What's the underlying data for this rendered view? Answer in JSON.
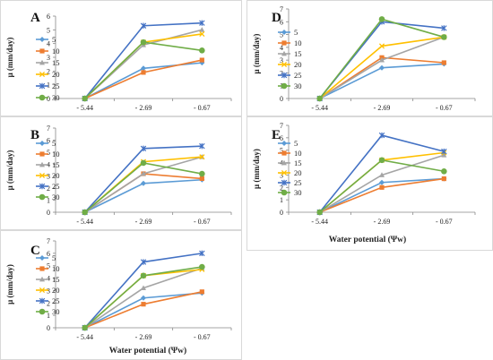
{
  "colors": {
    "s5": "#5b9bd5",
    "s10": "#ed7d31",
    "s15": "#a5a5a5",
    "s20": "#ffc000",
    "s25": "#4472c4",
    "s30": "#70ad47"
  },
  "chart_data": [
    {
      "type": "line",
      "panel_label": "A",
      "categories": [
        "- 5.44",
        "- 2.69",
        "- 0.67"
      ],
      "ylabel": "μ (mm/day)",
      "xlabel": "",
      "ylim": [
        0,
        6
      ],
      "yticks": [
        "0",
        "1",
        "2",
        "3",
        "4",
        "5",
        "6"
      ],
      "legend_position": "top-left",
      "series": [
        {
          "name": "5",
          "values": [
            0,
            2.2,
            2.6
          ]
        },
        {
          "name": "10",
          "values": [
            0,
            1.9,
            2.8
          ]
        },
        {
          "name": "15",
          "values": [
            0,
            3.9,
            5.0
          ]
        },
        {
          "name": "20",
          "values": [
            0,
            4.1,
            4.7
          ]
        },
        {
          "name": "25",
          "values": [
            0,
            5.3,
            5.5
          ]
        },
        {
          "name": "30",
          "values": [
            0,
            4.1,
            3.5
          ]
        }
      ]
    },
    {
      "type": "line",
      "panel_label": "B",
      "categories": [
        "- 5.44",
        "- 2.69",
        "- 0.67"
      ],
      "ylabel": "μ (mm/day)",
      "xlabel": "",
      "ylim": [
        0,
        7
      ],
      "yticks": [
        "0",
        "1",
        "2",
        "3",
        "4",
        "5",
        "6",
        "7"
      ],
      "legend_position": "top-left",
      "series": [
        {
          "name": "5",
          "values": [
            0,
            2.4,
            2.7
          ]
        },
        {
          "name": "10",
          "values": [
            0,
            3.2,
            2.8
          ]
        },
        {
          "name": "15",
          "values": [
            0,
            3.2,
            4.6
          ]
        },
        {
          "name": "20",
          "values": [
            0,
            4.2,
            4.6
          ]
        },
        {
          "name": "25",
          "values": [
            0,
            5.3,
            5.5
          ]
        },
        {
          "name": "30",
          "values": [
            0,
            4.1,
            3.2
          ]
        }
      ]
    },
    {
      "type": "line",
      "panel_label": "C",
      "categories": [
        "- 5.44",
        "- 2.69",
        "- 0.67"
      ],
      "ylabel": "μ (mm/day)",
      "xlabel": "Water potential (Ψw)",
      "ylim": [
        0,
        7
      ],
      "yticks": [
        "0",
        "1",
        "2",
        "3",
        "4",
        "5",
        "6",
        "7"
      ],
      "legend_position": "top-left",
      "series": [
        {
          "name": "5",
          "values": [
            0,
            2.4,
            2.8
          ]
        },
        {
          "name": "10",
          "values": [
            0,
            1.9,
            2.9
          ]
        },
        {
          "name": "15",
          "values": [
            0,
            3.2,
            4.8
          ]
        },
        {
          "name": "20",
          "values": [
            0,
            4.2,
            4.7
          ]
        },
        {
          "name": "25",
          "values": [
            0,
            5.3,
            6.0
          ]
        },
        {
          "name": "30",
          "values": [
            0,
            4.2,
            4.9
          ]
        }
      ]
    },
    {
      "type": "line",
      "panel_label": "D",
      "categories": [
        "- 5.44",
        "- 2.69",
        "- 0.67"
      ],
      "ylabel": "μ (mm/day)",
      "xlabel": "",
      "ylim": [
        0,
        7
      ],
      "yticks": [
        "0",
        "1",
        "2",
        "3",
        "4",
        "5",
        "6",
        "7"
      ],
      "legend_position": "top-left",
      "series": [
        {
          "name": "5",
          "values": [
            0,
            2.4,
            2.7
          ]
        },
        {
          "name": "10",
          "values": [
            0,
            3.2,
            2.8
          ]
        },
        {
          "name": "15",
          "values": [
            0,
            3.0,
            4.8
          ]
        },
        {
          "name": "20",
          "values": [
            0,
            4.1,
            4.8
          ]
        },
        {
          "name": "25",
          "values": [
            0,
            6.0,
            5.5
          ]
        },
        {
          "name": "30",
          "values": [
            0,
            6.2,
            4.8
          ]
        }
      ]
    },
    {
      "type": "line",
      "panel_label": "E",
      "categories": [
        "- 5.44",
        "- 2.69",
        "- 0.67"
      ],
      "ylabel": "μ (mm/day)",
      "xlabel": "Water potential (Ψw)",
      "ylim": [
        0,
        7
      ],
      "yticks": [
        "0",
        "1",
        "2",
        "3",
        "4",
        "5",
        "6",
        "7"
      ],
      "legend_position": "top-left",
      "series": [
        {
          "name": "5",
          "values": [
            0,
            2.4,
            2.7
          ]
        },
        {
          "name": "10",
          "values": [
            0,
            2.0,
            2.7
          ]
        },
        {
          "name": "15",
          "values": [
            0,
            3.0,
            4.6
          ]
        },
        {
          "name": "20",
          "values": [
            0,
            4.2,
            4.8
          ]
        },
        {
          "name": "25",
          "values": [
            0,
            6.2,
            4.9
          ]
        },
        {
          "name": "30",
          "values": [
            0,
            4.2,
            3.3
          ]
        }
      ]
    }
  ]
}
